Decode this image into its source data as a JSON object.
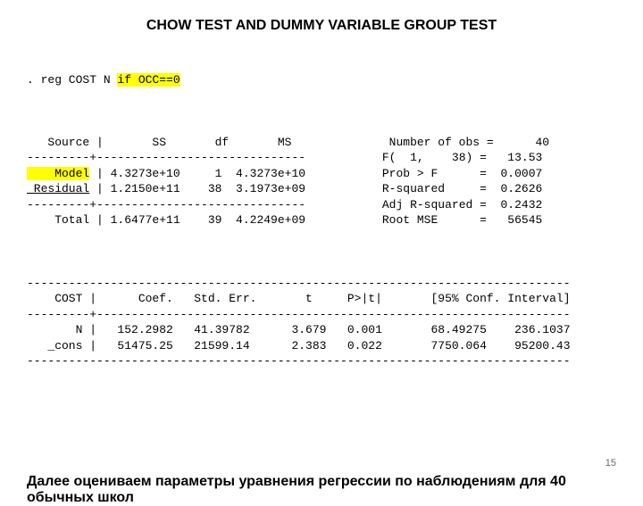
{
  "title": "CHOW TEST AND DUMMY VARIABLE GROUP TEST",
  "command_prefix": ". reg COST N ",
  "command_highlight": "if OCC==0",
  "anova": {
    "header": "   Source |       SS       df       MS   ",
    "sep1": "---------+------------------------------",
    "model_label": "    Model",
    "model_row": " | 4.3273e+10     1  4.3273e+10",
    "residual_label": " Residual",
    "residual_row": " | 1.2150e+11    38  3.1973e+09",
    "sep2": "---------+------------------------------",
    "total_row": "    Total | 1.6477e+11    39  4.2249e+09"
  },
  "stats": {
    "nobs": "           Number of obs =      40",
    "f": "           F(  1,    38) =   13.53",
    "probf": "           Prob > F      =  0.0007",
    "r2": "           R-squared     =  0.2626",
    "adjr2": "           Adj R-squared =  0.2432",
    "rmse": "           Root MSE      =   56545"
  },
  "coef": {
    "topline": "------------------------------------------------------------------------------",
    "header": "    COST |      Coef.   Std. Err.       t     P>|t|       [95% Conf. Interval]",
    "sep": "---------+--------------------------------------------------------------------",
    "row_n": "       N |   152.2982   41.39782      3.679   0.001       68.49275    236.1037",
    "row_cons": "   _cons |   51475.25   21599.14      2.383   0.022       7750.064    95200.43",
    "bottomline": "------------------------------------------------------------------------------"
  },
  "footer": "Далее оцениваем параметры уравнения регрессии по наблюдениям для  40 обычных школ",
  "page_number": "15"
}
